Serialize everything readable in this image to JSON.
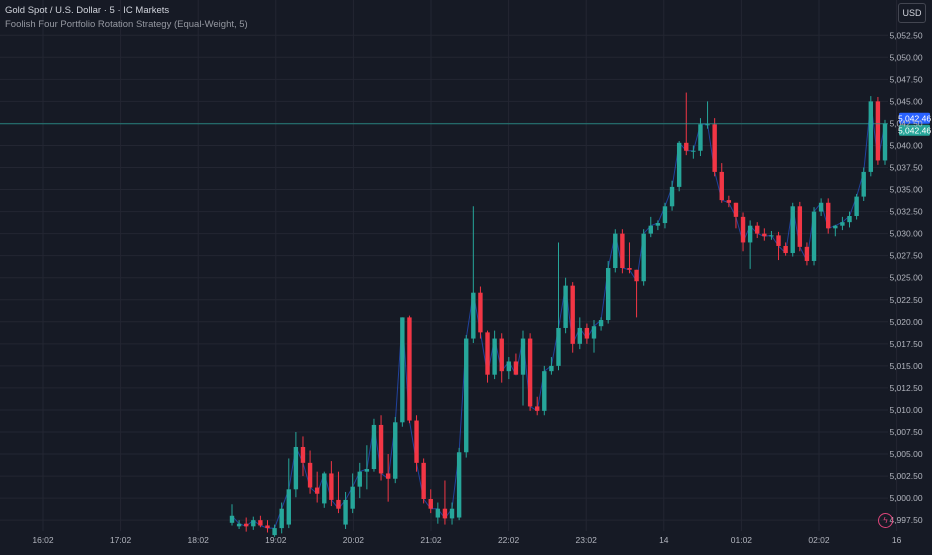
{
  "legend": {
    "title": "Gold Spot / U.S. Dollar · 5 · IC Markets",
    "indicator": "Foolish Four Portfolio Rotation Strategy (Equal-Weight, 5)"
  },
  "currency_button": "USD",
  "flash_icon": "lightning-icon",
  "colors": {
    "background": "#161a25",
    "up": "#26a69a",
    "down": "#f23645",
    "grid": "#232632",
    "price_line": "#26a69a",
    "indicator_line": "#2962ff"
  },
  "chart_data": {
    "type": "candlestick",
    "symbol": "Gold Spot / U.S. Dollar",
    "interval": "5",
    "exchange": "IC Markets",
    "ylim": [
      4995.5,
      5055.5
    ],
    "y_ticks": [
      4997.5,
      5000.0,
      5002.5,
      5005.0,
      5007.5,
      5010.0,
      5012.5,
      5015.0,
      5017.5,
      5020.0,
      5022.5,
      5025.0,
      5027.5,
      5030.0,
      5032.5,
      5035.0,
      5037.5,
      5040.0,
      5042.5,
      5045.0,
      5047.5,
      5050.0,
      5052.5
    ],
    "x_ticks": [
      "16:02",
      "17:02",
      "18:02",
      "19:02",
      "20:02",
      "21:02",
      "22:02",
      "23:02",
      "14",
      "01:02",
      "02:02",
      "16"
    ],
    "last_price": 5042.46,
    "last_price_labels": [
      "5,042.46",
      "5,042.46"
    ],
    "grid": true,
    "candles": [
      {
        "o": 4997.2,
        "h": 4999.3,
        "l": 4996.9,
        "c": 4998.0
      },
      {
        "o": 4996.8,
        "h": 4997.5,
        "l": 4996.5,
        "c": 4997.1
      },
      {
        "o": 4997.1,
        "h": 4997.8,
        "l": 4996.2,
        "c": 4996.8
      },
      {
        "o": 4996.8,
        "h": 4997.9,
        "l": 4996.4,
        "c": 4997.5
      },
      {
        "o": 4997.5,
        "h": 4998.0,
        "l": 4996.7,
        "c": 4996.9
      },
      {
        "o": 4996.9,
        "h": 4997.5,
        "l": 4996.1,
        "c": 4996.6
      },
      {
        "o": 4995.8,
        "h": 4997.0,
        "l": 4995.6,
        "c": 4996.6
      },
      {
        "o": 4996.6,
        "h": 4999.5,
        "l": 4996.0,
        "c": 4998.8
      },
      {
        "o": 4997.0,
        "h": 5004.5,
        "l": 4996.6,
        "c": 5001.0
      },
      {
        "o": 5001.0,
        "h": 5007.5,
        "l": 5000.1,
        "c": 5005.8
      },
      {
        "o": 5005.8,
        "h": 5007.0,
        "l": 5002.5,
        "c": 5004.0
      },
      {
        "o": 5004.0,
        "h": 5005.4,
        "l": 5000.5,
        "c": 5001.2
      },
      {
        "o": 5001.2,
        "h": 5003.0,
        "l": 4999.5,
        "c": 5000.5
      },
      {
        "o": 4999.4,
        "h": 5003.0,
        "l": 4998.9,
        "c": 5002.8
      },
      {
        "o": 5002.8,
        "h": 5004.2,
        "l": 4999.1,
        "c": 4999.8
      },
      {
        "o": 4999.8,
        "h": 5003.0,
        "l": 4998.3,
        "c": 4998.8
      },
      {
        "o": 4997.0,
        "h": 5000.7,
        "l": 4996.5,
        "c": 4999.8
      },
      {
        "o": 4998.8,
        "h": 5002.8,
        "l": 4998.3,
        "c": 5001.3
      },
      {
        "o": 5001.3,
        "h": 5004.0,
        "l": 5000.0,
        "c": 5003.0
      },
      {
        "o": 5003.0,
        "h": 5006.0,
        "l": 5001.0,
        "c": 5003.3
      },
      {
        "o": 5003.3,
        "h": 5009.0,
        "l": 5003.0,
        "c": 5008.3
      },
      {
        "o": 5008.3,
        "h": 5009.4,
        "l": 5002.0,
        "c": 5002.8
      },
      {
        "o": 5002.8,
        "h": 5005.0,
        "l": 4999.6,
        "c": 5002.2
      },
      {
        "o": 5002.2,
        "h": 5009.2,
        "l": 5001.7,
        "c": 5008.6
      },
      {
        "o": 5008.6,
        "h": 5020.5,
        "l": 5008.1,
        "c": 5020.5
      },
      {
        "o": 5020.5,
        "h": 5020.7,
        "l": 5008.5,
        "c": 5008.8
      },
      {
        "o": 5008.8,
        "h": 5009.4,
        "l": 5003.0,
        "c": 5004.0
      },
      {
        "o": 5004.0,
        "h": 5004.5,
        "l": 4999.4,
        "c": 4999.9
      },
      {
        "o": 4999.9,
        "h": 5001.0,
        "l": 4998.3,
        "c": 4998.8
      },
      {
        "o": 4997.8,
        "h": 4999.5,
        "l": 4997.1,
        "c": 4998.8
      },
      {
        "o": 4998.8,
        "h": 5002.0,
        "l": 4997.0,
        "c": 4997.7
      },
      {
        "o": 4997.7,
        "h": 4999.5,
        "l": 4997.0,
        "c": 4998.8
      },
      {
        "o": 4997.8,
        "h": 5005.7,
        "l": 4997.5,
        "c": 5005.2
      },
      {
        "o": 5005.2,
        "h": 5018.5,
        "l": 5004.6,
        "c": 5018.1
      },
      {
        "o": 5018.1,
        "h": 5033.1,
        "l": 5017.6,
        "c": 5023.3
      },
      {
        "o": 5023.3,
        "h": 5024.0,
        "l": 5018.1,
        "c": 5018.8
      },
      {
        "o": 5018.8,
        "h": 5019.0,
        "l": 5013.1,
        "c": 5014.0
      },
      {
        "o": 5014.0,
        "h": 5019.0,
        "l": 5013.5,
        "c": 5018.1
      },
      {
        "o": 5018.1,
        "h": 5018.7,
        "l": 5013.1,
        "c": 5014.4
      },
      {
        "o": 5014.4,
        "h": 5016.0,
        "l": 5013.5,
        "c": 5015.5
      },
      {
        "o": 5015.5,
        "h": 5016.4,
        "l": 5014.0,
        "c": 5014.0
      },
      {
        "o": 5014.0,
        "h": 5019.0,
        "l": 5010.5,
        "c": 5018.1
      },
      {
        "o": 5018.1,
        "h": 5018.7,
        "l": 5009.9,
        "c": 5010.4
      },
      {
        "o": 5010.4,
        "h": 5011.5,
        "l": 5009.4,
        "c": 5009.9
      },
      {
        "o": 5009.9,
        "h": 5015.0,
        "l": 5009.4,
        "c": 5014.4
      },
      {
        "o": 5014.4,
        "h": 5016.0,
        "l": 5014.0,
        "c": 5015.0
      },
      {
        "o": 5015.0,
        "h": 5029.0,
        "l": 5014.5,
        "c": 5019.3
      },
      {
        "o": 5019.3,
        "h": 5025.0,
        "l": 5018.7,
        "c": 5024.1
      },
      {
        "o": 5024.1,
        "h": 5024.5,
        "l": 5016.5,
        "c": 5017.5
      },
      {
        "o": 5017.5,
        "h": 5020.5,
        "l": 5016.9,
        "c": 5019.3
      },
      {
        "o": 5019.3,
        "h": 5019.8,
        "l": 5017.5,
        "c": 5018.1
      },
      {
        "o": 5018.1,
        "h": 5020.2,
        "l": 5016.5,
        "c": 5019.5
      },
      {
        "o": 5019.5,
        "h": 5020.5,
        "l": 5019.0,
        "c": 5020.2
      },
      {
        "o": 5020.2,
        "h": 5026.9,
        "l": 5019.8,
        "c": 5026.1
      },
      {
        "o": 5026.1,
        "h": 5030.5,
        "l": 5025.6,
        "c": 5030.0
      },
      {
        "o": 5030.0,
        "h": 5030.5,
        "l": 5025.5,
        "c": 5026.1
      },
      {
        "o": 5026.1,
        "h": 5029.0,
        "l": 5025.5,
        "c": 5025.9
      },
      {
        "o": 5025.9,
        "h": 5025.9,
        "l": 5020.5,
        "c": 5024.6
      },
      {
        "o": 5024.6,
        "h": 5030.5,
        "l": 5024.1,
        "c": 5030.0
      },
      {
        "o": 5030.0,
        "h": 5031.9,
        "l": 5029.6,
        "c": 5030.9
      },
      {
        "o": 5030.9,
        "h": 5031.5,
        "l": 5030.4,
        "c": 5031.2
      },
      {
        "o": 5031.2,
        "h": 5033.5,
        "l": 5030.6,
        "c": 5033.1
      },
      {
        "o": 5033.1,
        "h": 5036.0,
        "l": 5032.6,
        "c": 5035.3
      },
      {
        "o": 5035.3,
        "h": 5040.5,
        "l": 5034.8,
        "c": 5040.3
      },
      {
        "o": 5040.3,
        "h": 5046.0,
        "l": 5038.9,
        "c": 5039.4
      },
      {
        "o": 5039.4,
        "h": 5040.0,
        "l": 5038.5,
        "c": 5039.4
      },
      {
        "o": 5039.4,
        "h": 5043.1,
        "l": 5038.8,
        "c": 5042.4
      },
      {
        "o": 5042.4,
        "h": 5045.0,
        "l": 5041.9,
        "c": 5042.4
      },
      {
        "o": 5042.4,
        "h": 5043.1,
        "l": 5036.5,
        "c": 5037.0
      },
      {
        "o": 5037.0,
        "h": 5038.0,
        "l": 5033.5,
        "c": 5033.8
      },
      {
        "o": 5033.8,
        "h": 5034.3,
        "l": 5033.0,
        "c": 5033.5
      },
      {
        "o": 5033.5,
        "h": 5033.5,
        "l": 5030.6,
        "c": 5031.9
      },
      {
        "o": 5031.9,
        "h": 5032.4,
        "l": 5028.0,
        "c": 5029.0
      },
      {
        "o": 5029.0,
        "h": 5031.5,
        "l": 5026.0,
        "c": 5030.9
      },
      {
        "o": 5030.9,
        "h": 5031.3,
        "l": 5029.5,
        "c": 5030.0
      },
      {
        "o": 5030.0,
        "h": 5030.6,
        "l": 5029.2,
        "c": 5029.7
      },
      {
        "o": 5029.7,
        "h": 5030.3,
        "l": 5029.3,
        "c": 5029.8
      },
      {
        "o": 5029.8,
        "h": 5030.2,
        "l": 5027.0,
        "c": 5028.6
      },
      {
        "o": 5028.6,
        "h": 5029.0,
        "l": 5027.5,
        "c": 5027.8
      },
      {
        "o": 5027.8,
        "h": 5033.5,
        "l": 5027.4,
        "c": 5033.1
      },
      {
        "o": 5033.1,
        "h": 5033.6,
        "l": 5028.0,
        "c": 5028.5
      },
      {
        "o": 5028.5,
        "h": 5029.0,
        "l": 5026.4,
        "c": 5026.9
      },
      {
        "o": 5026.9,
        "h": 5033.0,
        "l": 5026.4,
        "c": 5032.5
      },
      {
        "o": 5032.5,
        "h": 5034.0,
        "l": 5032.0,
        "c": 5033.5
      },
      {
        "o": 5033.5,
        "h": 5034.0,
        "l": 5030.0,
        "c": 5030.6
      },
      {
        "o": 5030.6,
        "h": 5031.0,
        "l": 5029.7,
        "c": 5030.9
      },
      {
        "o": 5030.9,
        "h": 5031.9,
        "l": 5030.4,
        "c": 5031.3
      },
      {
        "o": 5031.3,
        "h": 5032.5,
        "l": 5030.7,
        "c": 5032.0
      },
      {
        "o": 5032.0,
        "h": 5034.5,
        "l": 5031.6,
        "c": 5034.2
      },
      {
        "o": 5034.2,
        "h": 5037.5,
        "l": 5033.7,
        "c": 5037.0
      },
      {
        "o": 5037.0,
        "h": 5045.6,
        "l": 5036.5,
        "c": 5045.0
      },
      {
        "o": 5045.0,
        "h": 5045.5,
        "l": 5037.8,
        "c": 5038.3
      },
      {
        "o": 5038.3,
        "h": 5042.9,
        "l": 5037.8,
        "c": 5042.5
      }
    ]
  }
}
